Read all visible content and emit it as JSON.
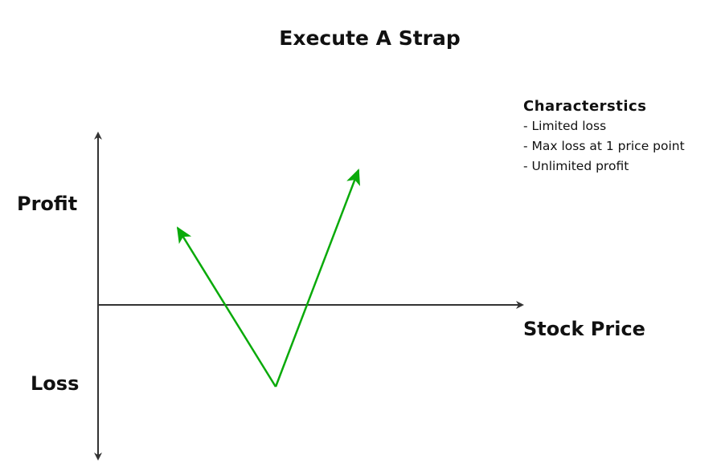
{
  "title": "Execute A Strap",
  "axes": {
    "y_positive_label": "Profit",
    "y_negative_label": "Loss",
    "x_label": "Stock Price"
  },
  "characteristics": {
    "heading": "Characterstics",
    "items": [
      "- Limited loss",
      "- Max loss at 1 price point",
      "- Unlimited profit"
    ]
  },
  "colors": {
    "payoff_line": "#0aaa0a",
    "axis": "#333333"
  }
}
